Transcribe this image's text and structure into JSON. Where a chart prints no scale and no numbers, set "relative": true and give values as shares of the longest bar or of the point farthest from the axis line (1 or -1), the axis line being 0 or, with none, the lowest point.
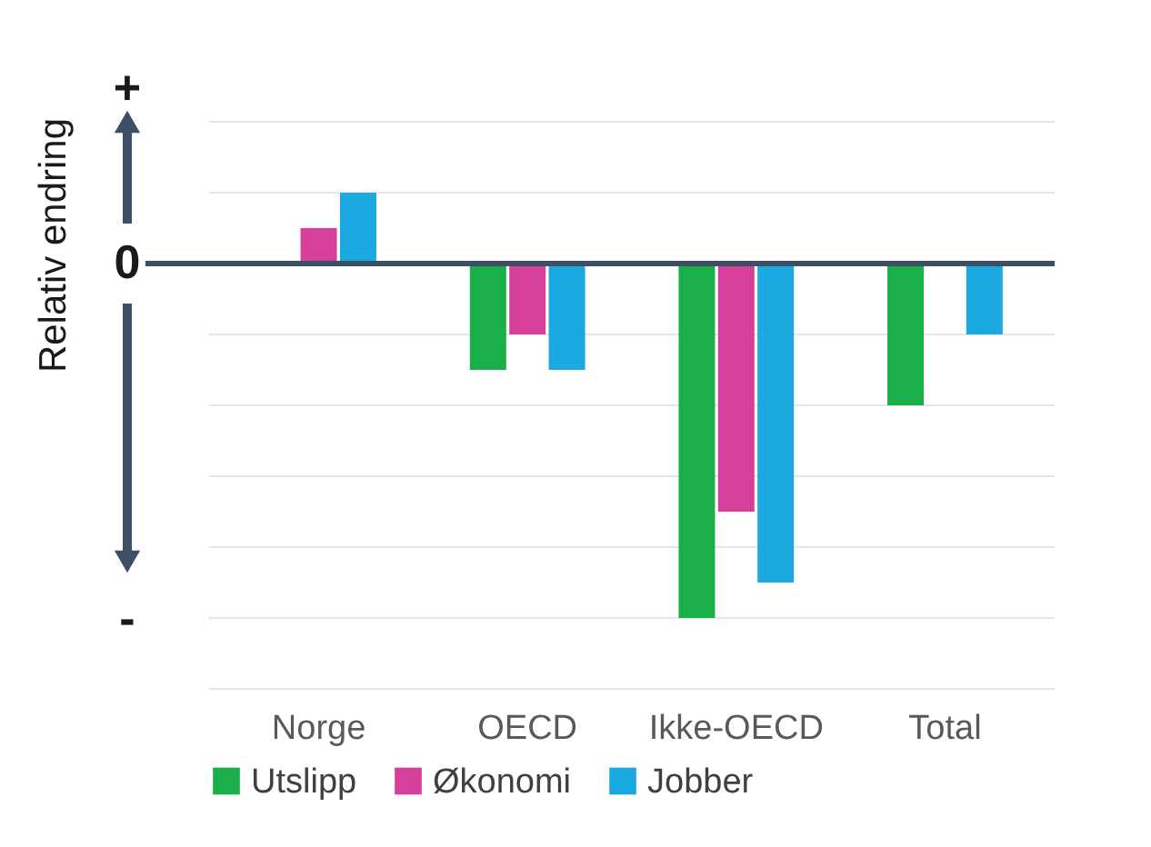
{
  "chart_data": {
    "type": "bar",
    "relative": true,
    "ylabel": "Relativ endring",
    "categories": [
      "Norge",
      "OECD",
      "Ikke-OECD",
      "Total"
    ],
    "series": [
      {
        "name": "Utslipp",
        "color": "#1aaf4b",
        "values": [
          null,
          -0.3,
          -1,
          -0.4
        ]
      },
      {
        "name": "Økonomi",
        "color": "#d6409a",
        "values": [
          0.1,
          -0.2,
          -0.7,
          null
        ]
      },
      {
        "name": "Jobber",
        "color": "#1ba9e1",
        "values": [
          0.2,
          -0.3,
          -0.9,
          -0.2
        ]
      }
    ],
    "annotations": [
      "+",
      "0",
      "-"
    ],
    "ref_lines": [
      {
        "axis": "y",
        "value": 0,
        "color": "#3c4f66"
      }
    ],
    "grid": "y",
    "legend": "bottom"
  }
}
